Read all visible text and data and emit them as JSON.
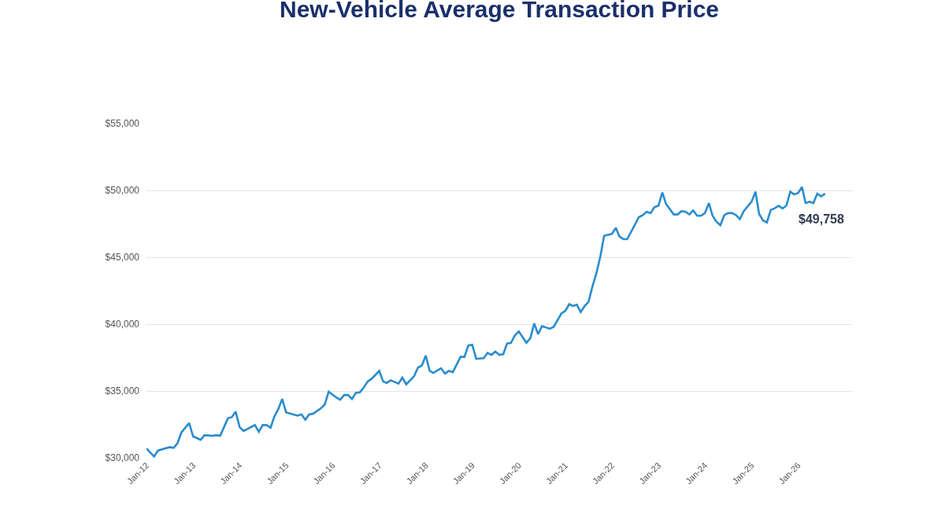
{
  "chart_data": {
    "type": "line",
    "title": "New-Vehicle Average Transaction Price",
    "x": [
      "2012-01",
      "2012-03",
      "2012-04",
      "2012-07",
      "2012-08",
      "2012-09",
      "2012-10",
      "2012-12",
      "2013-01",
      "2013-03",
      "2013-04",
      "2013-06",
      "2013-07",
      "2013-08",
      "2013-10",
      "2013-11",
      "2013-12",
      "2014-01",
      "2014-02",
      "2014-05",
      "2014-06",
      "2014-07",
      "2014-08",
      "2014-09",
      "2014-10",
      "2014-11",
      "2014-12",
      "2015-01",
      "2015-04",
      "2015-05",
      "2015-06",
      "2015-07",
      "2015-08",
      "2015-10",
      "2015-11",
      "2015-12",
      "2016-02",
      "2016-03",
      "2016-04",
      "2016-05",
      "2016-06",
      "2016-07",
      "2016-08",
      "2016-09",
      "2016-10",
      "2016-11",
      "2017-01",
      "2017-02",
      "2017-03",
      "2017-04",
      "2017-06",
      "2017-07",
      "2017-08",
      "2017-10",
      "2017-11",
      "2017-12",
      "2018-01",
      "2018-02",
      "2018-03",
      "2018-05",
      "2018-06",
      "2018-07",
      "2018-08",
      "2018-10",
      "2018-11",
      "2018-12",
      "2019-01",
      "2019-02",
      "2019-04",
      "2019-05",
      "2019-06",
      "2019-07",
      "2019-08",
      "2019-09",
      "2019-10",
      "2019-11",
      "2019-12",
      "2020-01",
      "2020-03",
      "2020-04",
      "2020-05",
      "2020-06",
      "2020-07",
      "2020-09",
      "2020-10",
      "2020-12",
      "2021-01",
      "2021-02",
      "2021-03",
      "2021-04",
      "2021-05",
      "2021-06",
      "2021-07",
      "2021-08",
      "2021-09",
      "2021-10",
      "2021-11",
      "2022-01",
      "2022-02",
      "2022-03",
      "2022-04",
      "2022-05",
      "2022-06",
      "2022-08",
      "2022-09",
      "2022-10",
      "2022-11",
      "2022-12",
      "2023-01",
      "2023-02",
      "2023-03",
      "2023-05",
      "2023-06",
      "2023-07",
      "2023-08",
      "2023-09",
      "2023-10",
      "2023-11",
      "2023-12",
      "2024-01",
      "2024-02",
      "2024-03",
      "2024-04",
      "2024-05",
      "2024-06",
      "2024-07",
      "2024-08",
      "2024-09",
      "2024-10",
      "2024-11",
      "2025-01",
      "2025-02",
      "2025-03",
      "2025-04",
      "2025-05",
      "2025-06",
      "2025-07",
      "2025-08",
      "2025-09",
      "2025-10",
      "2025-11",
      "2025-12",
      "2026-01",
      "2026-02",
      "2026-03",
      "2026-04",
      "2026-05",
      "2026-06",
      "2026-07",
      "2026-08"
    ],
    "values": [
      30700,
      30100,
      30550,
      30800,
      30750,
      31100,
      31900,
      32600,
      31600,
      31350,
      31700,
      31650,
      31700,
      31650,
      32950,
      33050,
      33450,
      32300,
      32000,
      32450,
      31950,
      32450,
      32450,
      32250,
      33100,
      33650,
      34400,
      33400,
      33150,
      33250,
      32850,
      33250,
      33300,
      33700,
      34000,
      34950,
      34500,
      34350,
      34700,
      34700,
      34400,
      34850,
      34900,
      35250,
      35700,
      35900,
      36500,
      35700,
      35600,
      35800,
      35550,
      36000,
      35500,
      36100,
      36750,
      36900,
      37650,
      36500,
      36350,
      36700,
      36300,
      36500,
      36400,
      37550,
      37550,
      38400,
      38450,
      37400,
      37450,
      37850,
      37700,
      37950,
      37700,
      37750,
      38550,
      38600,
      39150,
      39450,
      38600,
      38950,
      40050,
      39250,
      39850,
      39650,
      39800,
      40800,
      41000,
      41500,
      41350,
      41450,
      40900,
      41350,
      41650,
      42800,
      43800,
      45000,
      46600,
      46750,
      47200,
      46550,
      46350,
      46350,
      46900,
      48000,
      48150,
      48400,
      48300,
      48750,
      48850,
      49850,
      49000,
      48200,
      48200,
      48450,
      48400,
      48200,
      48500,
      48100,
      48100,
      48300,
      49050,
      48100,
      47650,
      47400,
      48150,
      48300,
      48300,
      48150,
      47850,
      48450,
      49150,
      49900,
      48250,
      47750,
      47600,
      48550,
      48650,
      48850,
      48650,
      48850,
      49900,
      49700,
      49800,
      50250,
      49050,
      49150,
      49050,
      49750,
      49550,
      49758
    ],
    "color": "#2b8ccd",
    "xlim": [
      "2012-01",
      "2027-03"
    ],
    "xticks": [
      {
        "value": "2012-01",
        "label": "Jan-12"
      },
      {
        "value": "2013-01",
        "label": "Jan-13"
      },
      {
        "value": "2014-01",
        "label": "Jan-14"
      },
      {
        "value": "2015-01",
        "label": "Jan-15"
      },
      {
        "value": "2016-01",
        "label": "Jan-16"
      },
      {
        "value": "2017-01",
        "label": "Jan-17"
      },
      {
        "value": "2018-01",
        "label": "Jan-18"
      },
      {
        "value": "2019-01",
        "label": "Jan-19"
      },
      {
        "value": "2020-01",
        "label": "Jan-20"
      },
      {
        "value": "2021-01",
        "label": "Jan-21"
      },
      {
        "value": "2022-01",
        "label": "Jan-22"
      },
      {
        "value": "2023-01",
        "label": "Jan-23"
      },
      {
        "value": "2024-01",
        "label": "Jan-24"
      },
      {
        "value": "2025-01",
        "label": "Jan-25"
      },
      {
        "value": "2026-01",
        "label": "Jan-26"
      }
    ],
    "ylim": [
      30000,
      55000
    ],
    "yticks": [
      {
        "value": 30000,
        "label": "$30,000"
      },
      {
        "value": 35000,
        "label": "$35,000"
      },
      {
        "value": 40000,
        "label": "$40,000"
      },
      {
        "value": 45000,
        "label": "$45,000"
      },
      {
        "value": 50000,
        "label": "$50,000"
      },
      {
        "value": 55000,
        "label": "$55,000"
      }
    ],
    "grid": "y",
    "annotations": [
      {
        "text": "$49,758",
        "x": "2026-08",
        "y": 49758
      }
    ]
  }
}
